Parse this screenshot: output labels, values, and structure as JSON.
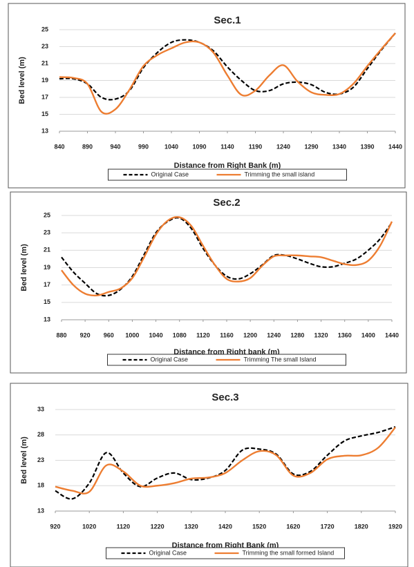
{
  "chart_data": [
    {
      "type": "line",
      "title": "Sec.1",
      "ylabel": "Bed level (m)",
      "xlabel": "Distance from Right Bank (m)",
      "x": [
        840,
        865,
        890,
        915,
        940,
        965,
        990,
        1015,
        1040,
        1065,
        1090,
        1115,
        1140,
        1165,
        1190,
        1215,
        1240,
        1265,
        1290,
        1315,
        1340,
        1365,
        1390,
        1415,
        1440
      ],
      "series": [
        {
          "name": "Original Case",
          "color": "#000000",
          "dash": true,
          "values": [
            19.2,
            19.2,
            18.6,
            17.0,
            16.8,
            17.8,
            20.5,
            22.3,
            23.5,
            23.8,
            23.5,
            22.5,
            20.6,
            19.0,
            17.8,
            17.8,
            18.6,
            18.8,
            18.5,
            17.6,
            17.4,
            18.2,
            20.4,
            22.6,
            24.6
          ]
        },
        {
          "name": "Trimming the small island",
          "color": "#ed7d31",
          "dash": false,
          "values": [
            19.4,
            19.3,
            18.6,
            15.3,
            15.6,
            17.9,
            20.7,
            22.0,
            22.8,
            23.5,
            23.5,
            22.3,
            19.6,
            17.3,
            17.8,
            19.6,
            20.8,
            18.9,
            17.6,
            17.3,
            17.4,
            18.6,
            20.7,
            22.7,
            24.6
          ]
        }
      ],
      "xlim": [
        840,
        1440
      ],
      "xticks": [
        840,
        890,
        940,
        990,
        1040,
        1090,
        1140,
        1190,
        1240,
        1290,
        1340,
        1390,
        1440
      ],
      "ylim": [
        13,
        25
      ],
      "yticks": [
        13,
        15,
        17,
        19,
        21,
        23,
        25
      ],
      "grid": true
    },
    {
      "type": "line",
      "title": "Sec.2",
      "ylabel": "Bed level (m)",
      "xlabel": "Distance from Right bank (m)",
      "x": [
        880,
        900,
        920,
        940,
        960,
        980,
        1000,
        1020,
        1040,
        1060,
        1080,
        1100,
        1120,
        1140,
        1160,
        1180,
        1200,
        1220,
        1240,
        1260,
        1280,
        1300,
        1320,
        1340,
        1360,
        1380,
        1400,
        1420,
        1440
      ],
      "series": [
        {
          "name": "Original Case",
          "color": "#000000",
          "dash": true,
          "values": [
            20.2,
            18.5,
            17.2,
            16.0,
            15.8,
            16.5,
            18.0,
            20.5,
            23.0,
            24.3,
            24.7,
            23.5,
            21.2,
            19.3,
            18.0,
            17.7,
            18.3,
            19.3,
            20.4,
            20.4,
            20.0,
            19.5,
            19.1,
            19.1,
            19.5,
            20.0,
            21.0,
            22.3,
            24.2
          ]
        },
        {
          "name": "Trimming The small Island",
          "color": "#ed7d31",
          "dash": false,
          "values": [
            18.7,
            17.0,
            16.0,
            15.8,
            16.2,
            16.6,
            17.8,
            20.2,
            22.8,
            24.4,
            24.8,
            23.8,
            21.5,
            19.3,
            17.7,
            17.4,
            17.8,
            19.2,
            20.3,
            20.4,
            20.4,
            20.3,
            20.2,
            19.8,
            19.4,
            19.3,
            19.8,
            21.5,
            24.3
          ]
        }
      ],
      "xlim": [
        880,
        1440
      ],
      "xticks": [
        880,
        920,
        960,
        1000,
        1040,
        1080,
        1120,
        1160,
        1200,
        1240,
        1280,
        1320,
        1360,
        1400,
        1440
      ],
      "ylim": [
        13,
        25
      ],
      "yticks": [
        13,
        15,
        17,
        19,
        21,
        23,
        25
      ],
      "grid": true
    },
    {
      "type": "line",
      "title": "Sec.3",
      "ylabel": "Bed level (m)",
      "xlabel": "Distance from Right Bank (m)",
      "x": [
        920,
        970,
        1020,
        1070,
        1120,
        1170,
        1220,
        1270,
        1320,
        1370,
        1420,
        1470,
        1520,
        1570,
        1620,
        1670,
        1720,
        1770,
        1820,
        1870,
        1920
      ],
      "series": [
        {
          "name": "Original Case",
          "color": "#000000",
          "dash": true,
          "values": [
            17.0,
            15.4,
            18.5,
            24.5,
            20.5,
            17.8,
            19.5,
            20.5,
            19.2,
            19.5,
            21.0,
            25.0,
            25.2,
            24.2,
            20.3,
            20.8,
            24.0,
            26.8,
            27.8,
            28.5,
            29.6
          ]
        },
        {
          "name": "Trimming the small formed Island",
          "color": "#ed7d31",
          "dash": false,
          "values": [
            17.8,
            17.0,
            16.8,
            22.0,
            20.8,
            18.0,
            18.0,
            18.5,
            19.4,
            19.6,
            20.5,
            23.0,
            24.8,
            24.0,
            20.0,
            20.5,
            23.2,
            23.9,
            24.0,
            25.5,
            29.5
          ]
        }
      ],
      "xlim": [
        920,
        1920
      ],
      "xticks": [
        920,
        1020,
        1120,
        1220,
        1320,
        1420,
        1520,
        1620,
        1720,
        1820,
        1920
      ],
      "ylim": [
        13,
        33
      ],
      "yticks": [
        13,
        18,
        23,
        28,
        33
      ],
      "grid": true
    }
  ]
}
